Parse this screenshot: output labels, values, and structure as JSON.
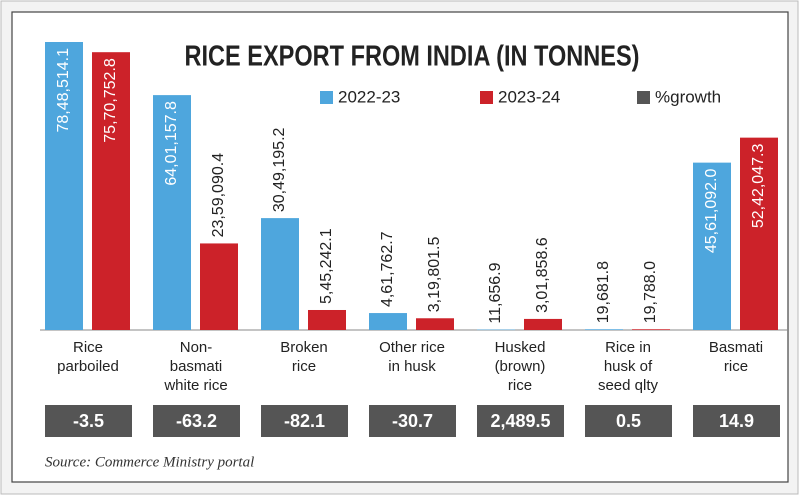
{
  "chart_data": {
    "type": "bar",
    "title": "RICE EXPORT FROM INDIA (IN TONNES)",
    "categories": [
      "Rice\nparboiled",
      "Non-\nbasmati\nwhite rice",
      "Broken\nrice",
      "Other rice\nin husk",
      "Husked\n(brown)\nrice",
      "Rice in\nhusk of\nseed qlty",
      "Basmati\nrice"
    ],
    "series": [
      {
        "name": "2022-23",
        "color": "#4ea6dd",
        "values": [
          7848514.1,
          6401157.8,
          3049195.2,
          461762.7,
          11656.9,
          19681.8,
          4561092.0
        ],
        "value_labels": [
          "78,48,514.1",
          "64,01,157.8",
          "30,49,195.2",
          "4,61,762.7",
          "11,656.9",
          "19,681.8",
          "45,61,092.0"
        ]
      },
      {
        "name": "2023-24",
        "color": "#cc2229",
        "values": [
          7570752.8,
          2359090.4,
          545242.1,
          319801.5,
          301858.6,
          19788.0,
          5242047.3
        ],
        "value_labels": [
          "75,70,752.8",
          "23,59,090.4",
          "5,45,242.1",
          "3,19,801.5",
          "3,01,858.6",
          "19,788.0",
          "52,42,047.3"
        ]
      },
      {
        "name": "%growth",
        "color": "#555555",
        "values": [
          -3.5,
          -63.2,
          -82.1,
          -30.7,
          2489.5,
          0.5,
          14.9
        ],
        "value_labels": [
          "-3.5",
          "-63.2",
          "-82.1",
          "-30.7",
          "2,489.5",
          "0.5",
          "14.9"
        ]
      }
    ],
    "source": "Source: Commerce Ministry portal"
  }
}
